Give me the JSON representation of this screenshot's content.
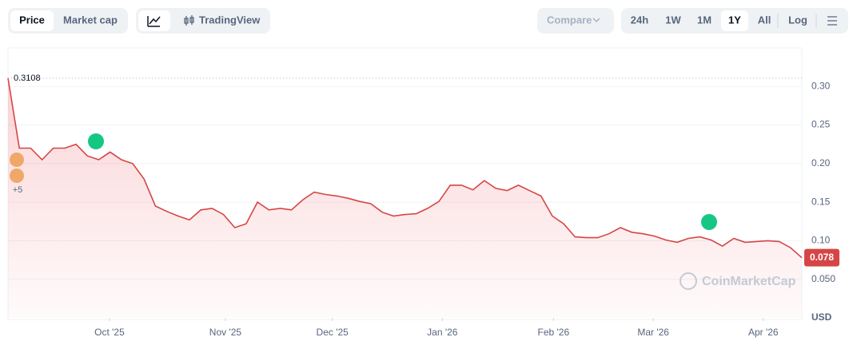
{
  "toolbar": {
    "data_tabs": [
      "Price",
      "Market cap"
    ],
    "view_tabs": [
      "TradingView"
    ],
    "compare": "Compare",
    "ranges": [
      "24h",
      "1W",
      "1M",
      "1Y",
      "All"
    ],
    "scale": "Log"
  },
  "chart_data": {
    "type": "line",
    "color": "#d64545",
    "series": [
      {
        "name": "Price",
        "color": "#d64545",
        "values": [
          0.3108,
          0.22,
          0.22,
          0.205,
          0.22,
          0.22,
          0.225,
          0.21,
          0.205,
          0.215,
          0.205,
          0.2,
          0.18,
          0.145,
          0.138,
          0.132,
          0.127,
          0.14,
          0.142,
          0.134,
          0.117,
          0.122,
          0.15,
          0.14,
          0.142,
          0.14,
          0.153,
          0.163,
          0.16,
          0.158,
          0.155,
          0.151,
          0.148,
          0.137,
          0.132,
          0.134,
          0.135,
          0.142,
          0.151,
          0.172,
          0.172,
          0.166,
          0.178,
          0.168,
          0.165,
          0.172,
          0.165,
          0.158,
          0.132,
          0.122,
          0.105,
          0.104,
          0.104,
          0.109,
          0.117,
          0.111,
          0.109,
          0.106,
          0.101,
          0.098,
          0.103,
          0.105,
          0.101,
          0.093,
          0.103,
          0.098,
          0.099,
          0.1,
          0.099,
          0.091,
          0.078
        ]
      }
    ],
    "ylim": [
      0,
      0.35
    ],
    "yticks": [
      {
        "value": 0.05,
        "label": "0.050"
      },
      {
        "value": 0.1,
        "label": "0.10"
      },
      0.15,
      {
        "value": 0.2,
        "label": "0.20"
      },
      0.25,
      {
        "value": 0.3,
        "label": "0.30"
      }
    ],
    "xlim": [
      0,
      70
    ],
    "xticks": [
      {
        "value": 8.95,
        "label": "Oct '25"
      },
      {
        "value": 19.17,
        "label": "Nov '25"
      },
      {
        "value": 28.6,
        "label": "Dec '25"
      },
      {
        "value": 38.3,
        "label": "Jan '26"
      },
      {
        "value": 48.1,
        "label": "Feb '26"
      },
      {
        "value": 56.9,
        "label": "Mar '26"
      },
      {
        "value": 66.6,
        "label": "Apr '26"
      }
    ],
    "grid": true,
    "high_label": "0.3108",
    "last_label": "0.078",
    "events_more": "+5",
    "currency": "USD",
    "watermark": "CoinMarketCap"
  }
}
